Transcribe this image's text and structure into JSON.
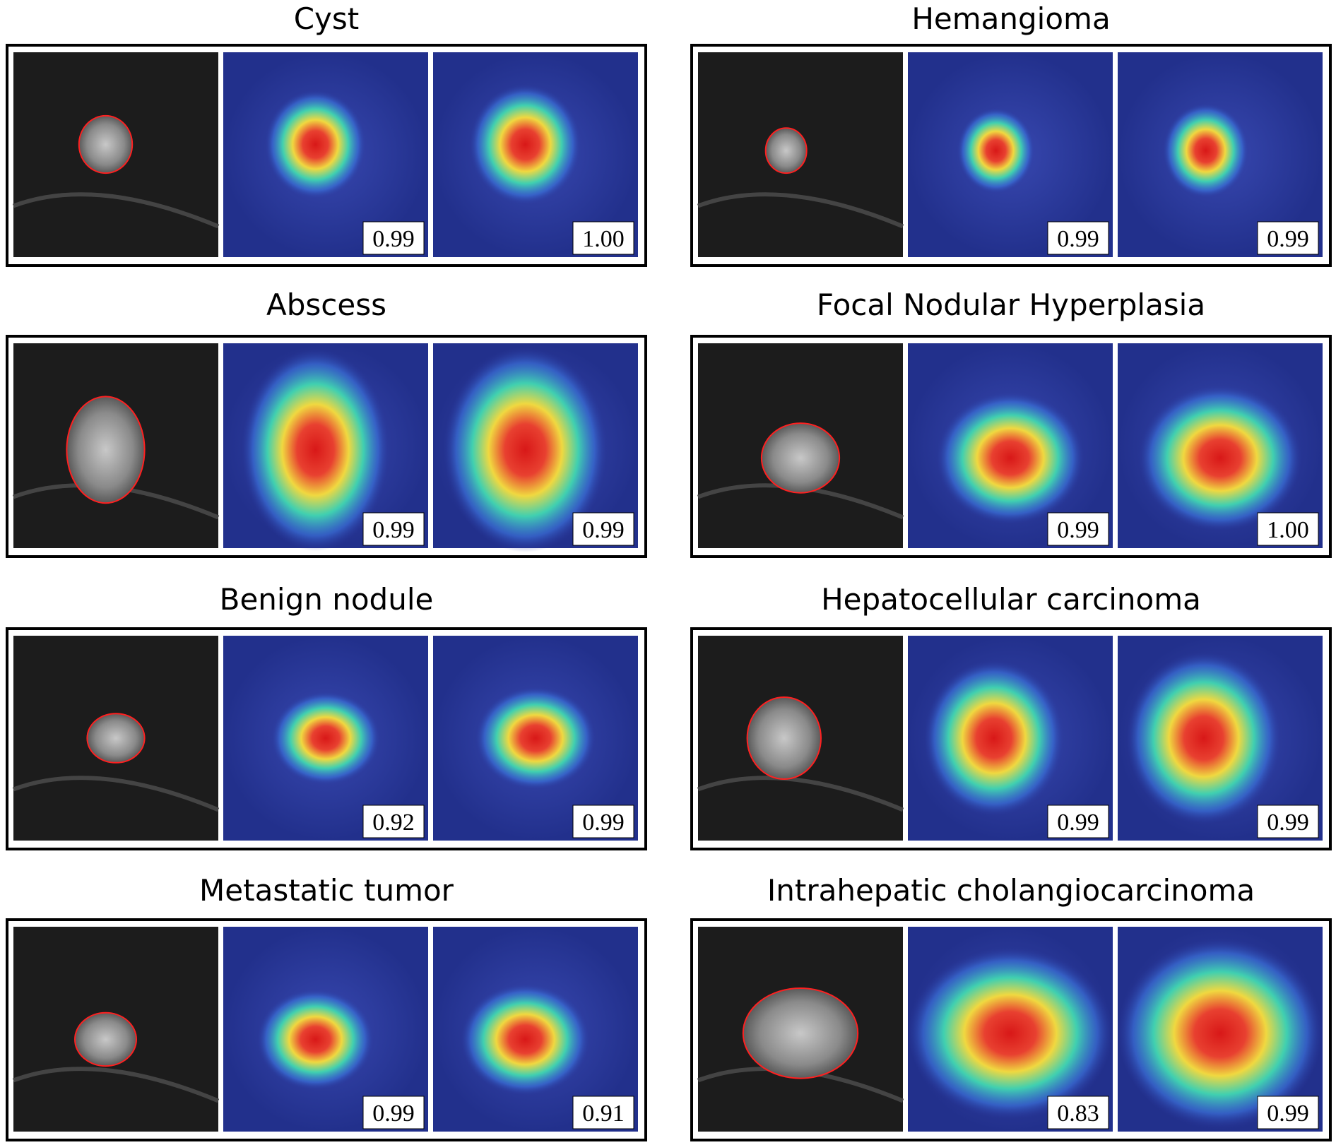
{
  "panels": [
    {
      "title": "Cyst",
      "scores": [
        "0.99",
        "1.00"
      ]
    },
    {
      "title": "Hemangioma",
      "scores": [
        "0.99",
        "0.99"
      ]
    },
    {
      "title": "Abscess",
      "scores": [
        "0.99",
        "0.99"
      ]
    },
    {
      "title": "Focal Nodular Hyperplasia",
      "scores": [
        "0.99",
        "1.00"
      ]
    },
    {
      "title": "Benign nodule",
      "scores": [
        "0.92",
        "0.99"
      ]
    },
    {
      "title": "Hepatocellular carcinoma",
      "scores": [
        "0.99",
        "0.99"
      ]
    },
    {
      "title": "Metastatic tumor",
      "scores": [
        "0.99",
        "0.91"
      ]
    },
    {
      "title": "Intrahepatic cholangiocarcinoma",
      "scores": [
        "0.83",
        "0.99"
      ]
    }
  ]
}
